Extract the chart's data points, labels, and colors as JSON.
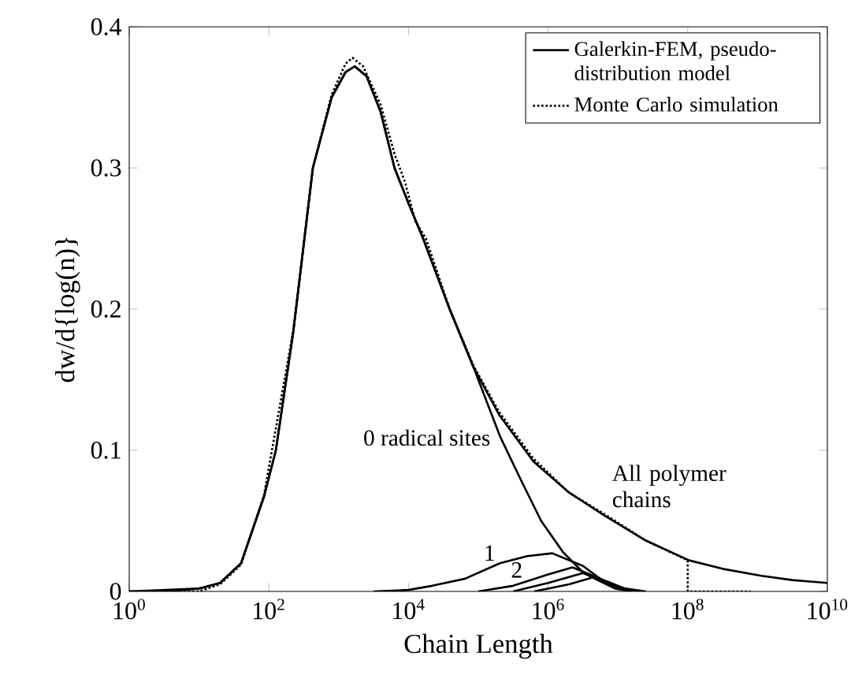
{
  "chart_data": {
    "type": "line",
    "xlabel": "Chain Length",
    "ylabel": "dw/d{log(n)}",
    "log": "x",
    "marker": "none",
    "legend": "top right",
    "xlim": [
      1,
      10000000000
    ],
    "ylim": [
      0,
      0.4
    ],
    "xticks": [
      {
        "value": 1,
        "label": "10$^{0}$"
      },
      {
        "value": 100,
        "label": "10$^{2}$"
      },
      {
        "value": 10000,
        "label": "10$^{4}$"
      },
      {
        "value": 1000000,
        "label": "10$^{6}$"
      },
      {
        "value": 100000000,
        "label": "10$^{8}$"
      },
      {
        "value": 10000000000,
        "label": "10$^{10}$"
      }
    ],
    "yticks": [
      0,
      0.1,
      0.2,
      0.3,
      0.4
    ],
    "series": [
      {
        "name": "Galerkin-FEM, pseudo-distribution model",
        "color": "#000000",
        "line_style": "solid",
        "x": [
          1,
          3.2,
          10,
          20,
          40,
          85,
          126,
          224,
          427,
          794,
          1259,
          1698,
          2512,
          3981,
          6310,
          10000,
          16218,
          38905,
          85114,
          199526,
          616595,
          1995262,
          6309573,
          25118864,
          104712855,
          316227766,
          1148153621,
          3162277660,
          10000000000
        ],
        "values": [
          0,
          0,
          0.002,
          0.006,
          0.02,
          0.067,
          0.1,
          0.184,
          0.3,
          0.35,
          0.368,
          0.372,
          0.365,
          0.34,
          0.3,
          0.275,
          0.25,
          0.2,
          0.159,
          0.125,
          0.092,
          0.07,
          0.054,
          0.036,
          0.022,
          0.016,
          0.011,
          0.008,
          0.006
        ]
      },
      {
        "name": "Monte Carlo simulation",
        "color": "#000000",
        "line_style": "dotted",
        "x": [
          1,
          10,
          20,
          40,
          85,
          224,
          427,
          794,
          1259,
          1585,
          2239,
          3981,
          6310,
          8913,
          12589,
          17783,
          38905,
          85114,
          199526,
          616595,
          1995262,
          6309573,
          25118864,
          100000000,
          100000000,
          794328235
        ],
        "values": [
          0,
          0,
          0.005,
          0.019,
          0.068,
          0.185,
          0.3,
          0.352,
          0.374,
          0.378,
          0.372,
          0.345,
          0.31,
          0.29,
          0.262,
          0.25,
          0.2,
          0.16,
          0.127,
          0.094,
          0.07,
          0.055,
          0.036,
          0.022,
          0,
          0
        ]
      },
      {
        "color": "#000000",
        "line_style": "solid",
        "x": [
          1,
          10,
          20,
          40,
          85,
          126,
          224,
          427,
          794,
          1259,
          1698,
          2512,
          3981,
          6310,
          10000,
          16218,
          38905,
          85114,
          204174,
          398107,
          794328,
          1621810,
          3235937,
          9120108,
          15488166
        ],
        "values": [
          0,
          0.002,
          0.006,
          0.02,
          0.067,
          0.1,
          0.184,
          0.3,
          0.35,
          0.368,
          0.372,
          0.365,
          0.34,
          0.3,
          0.275,
          0.25,
          0.2,
          0.159,
          0.11,
          0.08,
          0.05,
          0.028,
          0.013,
          0.002,
          0
        ]
      },
      {
        "color": "#000000",
        "line_style": "solid",
        "x": [
          3162,
          10000,
          21878,
          64565,
          204174,
          501187,
          1148154,
          3162278,
          6309573,
          15848932
        ],
        "values": [
          0,
          0.001,
          0.004,
          0.009,
          0.02,
          0.025,
          0.027,
          0.018,
          0.007,
          0
        ]
      },
      {
        "color": "#000000",
        "line_style": "solid",
        "x": [
          100000,
          316228,
          1000000,
          2238721,
          3981072,
          7943282,
          15848932
        ],
        "values": [
          0,
          0.004,
          0.012,
          0.017,
          0.012,
          0.004,
          0
        ]
      },
      {
        "color": "#000000",
        "line_style": "solid",
        "x": [
          316228,
          1000000,
          3162278,
          5623413,
          10000000,
          19952623
        ],
        "values": [
          0,
          0.006,
          0.013,
          0.009,
          0.003,
          0
        ]
      },
      {
        "color": "#000000",
        "line_style": "solid",
        "x": [
          630957,
          1995262,
          4466836,
          7079458,
          12589254,
          25118864
        ],
        "values": [
          0,
          0.005,
          0.01,
          0.007,
          0.002,
          0
        ]
      }
    ],
    "annotations": [
      {
        "text": "0 radical sites",
        "x": 281838,
        "y": 0.1
      },
      {
        "text": "All polymer chains",
        "x": 100000000,
        "y": 0.022
      },
      {
        "text": "1",
        "x": 204174,
        "y": 0.02
      },
      {
        "text": "2",
        "x": 501187,
        "y": 0.008
      }
    ]
  }
}
